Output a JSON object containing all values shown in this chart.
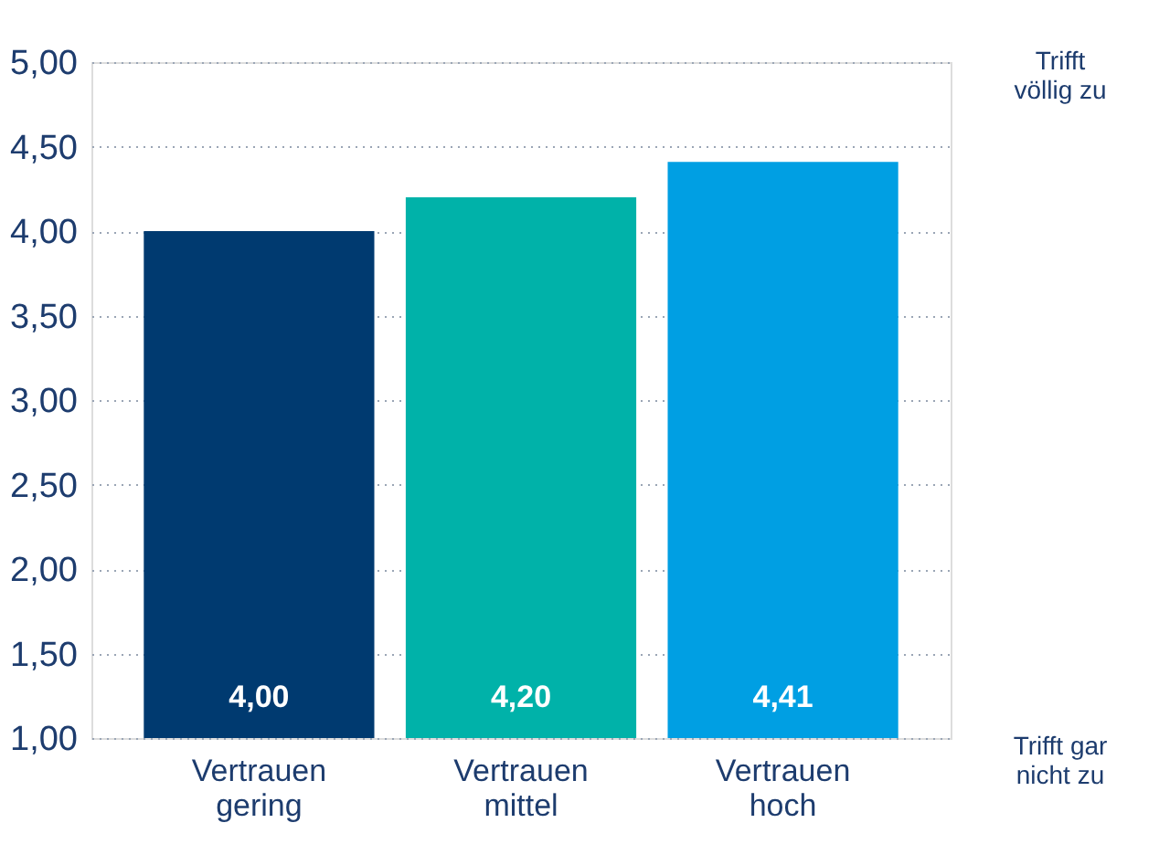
{
  "chart_data": {
    "type": "bar",
    "categories": [
      "Vertrauen gering",
      "Vertrauen mittel",
      "Vertrauen hoch"
    ],
    "values": [
      4.0,
      4.2,
      4.41
    ],
    "colors": [
      "#003a70",
      "#00b2a9",
      "#009fe3"
    ],
    "ylim": [
      1,
      5
    ],
    "yticks": [
      {
        "value": 1,
        "label": "1,00"
      },
      {
        "value": 1.5,
        "label": "1,50"
      },
      {
        "value": 2,
        "label": "2,00"
      },
      {
        "value": 2.5,
        "label": "2,50"
      },
      {
        "value": 3,
        "label": "3,00"
      },
      {
        "value": 3.5,
        "label": "3,50"
      },
      {
        "value": 4,
        "label": "4,00"
      },
      {
        "value": 4.5,
        "label": "4,50"
      },
      {
        "value": 5,
        "label": "5,00"
      }
    ],
    "annotations": [
      "Trifft völlig zu",
      "Trifft gar nicht zu"
    ],
    "value_labels": [
      "4,00",
      "4,20",
      "4,41"
    ],
    "grid": "y"
  }
}
